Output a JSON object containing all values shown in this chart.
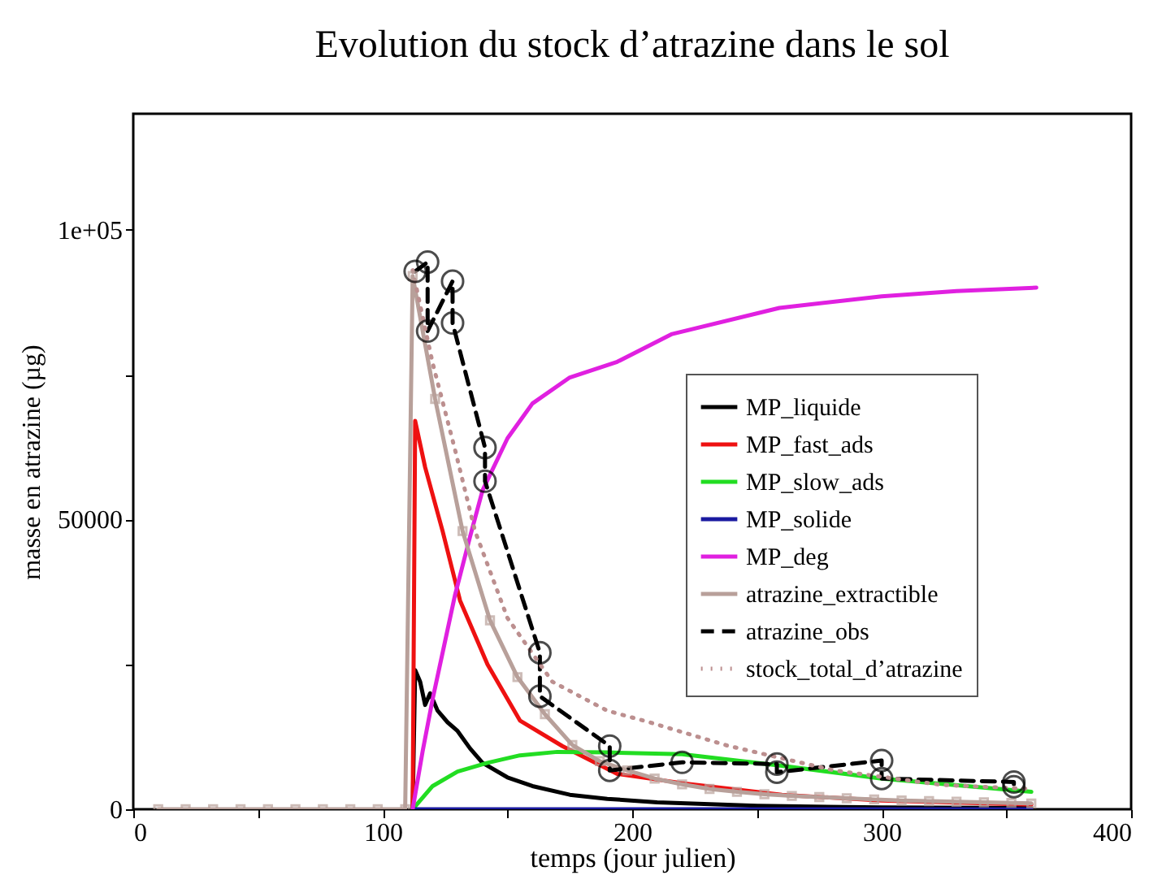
{
  "chart_data": {
    "type": "line",
    "title": "Evolution du stock d’atrazine dans le sol",
    "xlabel": "temps (jour julien)",
    "ylabel": "masse en atrazine (µg)",
    "xlim": [
      0,
      400
    ],
    "ylim": [
      0,
      120000
    ],
    "xticks": [
      0,
      {
        "value": 50,
        "label": null
      },
      100,
      {
        "value": 150,
        "label": null
      },
      200,
      {
        "value": 250,
        "label": null
      },
      300,
      {
        "value": 350,
        "label": null
      },
      400
    ],
    "yticks": [
      0,
      {
        "value": 25000,
        "label": null
      },
      50000,
      {
        "value": 75000,
        "label": null
      },
      {
        "value": 100000,
        "label": "1e+05"
      }
    ],
    "grid": false,
    "legend": "right",
    "series": [
      {
        "name": "MP_liquide",
        "color": "#000000",
        "line_style": "solid",
        "marker": "none",
        "x": [
          112,
          113,
          115,
          117,
          119,
          122,
          126,
          130,
          135,
          140,
          150,
          160,
          175,
          190,
          210,
          250,
          300,
          360
        ],
        "values": [
          0,
          24000,
          22000,
          18000,
          20000,
          17000,
          15000,
          13500,
          10500,
          8000,
          5500,
          4000,
          2500,
          1800,
          1200,
          600,
          300,
          200
        ]
      },
      {
        "name": "MP_fast_ads",
        "color": "#ee1111",
        "line_style": "solid",
        "marker": "none",
        "x": [
          112,
          113,
          117,
          124,
          131,
          142,
          155,
          172,
          194,
          220,
          260,
          300,
          360
        ],
        "values": [
          0,
          67000,
          59000,
          48000,
          36000,
          25000,
          15300,
          10900,
          6100,
          4500,
          2500,
          1500,
          800
        ]
      },
      {
        "name": "MP_slow_ads",
        "color": "#22dd22",
        "line_style": "solid",
        "marker": "none",
        "x": [
          112,
          120,
          130,
          142,
          155,
          170,
          190,
          220,
          260,
          300,
          360
        ],
        "values": [
          0,
          4000,
          6500,
          8000,
          9300,
          9900,
          9800,
          9500,
          7500,
          5300,
          3000
        ]
      },
      {
        "name": "MP_solide",
        "color": "#1a1aa0",
        "line_style": "solid",
        "marker": "none",
        "x": [
          112,
          360
        ],
        "values": [
          0,
          0
        ]
      },
      {
        "name": "MP_deg",
        "color": "#e020e0",
        "line_style": "solid",
        "marker": "none",
        "x": [
          112,
          116,
          120,
          125,
          129,
          135,
          140,
          150,
          160,
          175,
          194,
          216,
          259,
          300,
          330,
          362
        ],
        "values": [
          0,
          10000,
          19000,
          29000,
          37000,
          47000,
          55000,
          64000,
          70000,
          74500,
          77200,
          82000,
          86500,
          88500,
          89400,
          90000
        ]
      },
      {
        "name": "atrazine_extractible",
        "color": "#b8a09a",
        "line_style": "solid",
        "marker": "square",
        "x": [
          10,
          21,
          32,
          43,
          54,
          65,
          76,
          87,
          98,
          109,
          112,
          121,
          132,
          143,
          154,
          165,
          176,
          187,
          198,
          209,
          220,
          231,
          242,
          253,
          264,
          275,
          286,
          297,
          308,
          319,
          330,
          341,
          352,
          360
        ],
        "values": [
          0,
          0,
          0,
          0,
          0,
          0,
          0,
          0,
          0,
          0,
          92000,
          70800,
          48000,
          32600,
          22800,
          16400,
          11100,
          8300,
          6700,
          5300,
          4300,
          3500,
          3000,
          2600,
          2300,
          2100,
          1900,
          1700,
          1500,
          1400,
          1300,
          1200,
          1100,
          1000
        ]
      },
      {
        "name": "atrazine_obs",
        "color": "#000000",
        "line_style": "dashed",
        "marker": "circle",
        "x": [
          113,
          118,
          118,
          128,
          128,
          141,
          141,
          163,
          163,
          191,
          191,
          220,
          258,
          258,
          300,
          300,
          353,
          353
        ],
        "values": [
          92800,
          94400,
          82500,
          91100,
          83900,
          62400,
          56600,
          27000,
          19500,
          10900,
          6700,
          8100,
          7800,
          6400,
          8400,
          5300,
          4700,
          3900
        ]
      },
      {
        "name": "stock_total_d’atrazine",
        "color": "#bc8f8f",
        "line_style": "dotted",
        "marker": "none",
        "x": [
          112,
          120,
          129,
          137,
          150,
          168,
          190,
          207,
          238,
          281,
          324,
          360
        ],
        "values": [
          93000,
          77000,
          62000,
          48000,
          33000,
          22000,
          17000,
          15000,
          11000,
          6700,
          4200,
          3500
        ]
      }
    ]
  }
}
